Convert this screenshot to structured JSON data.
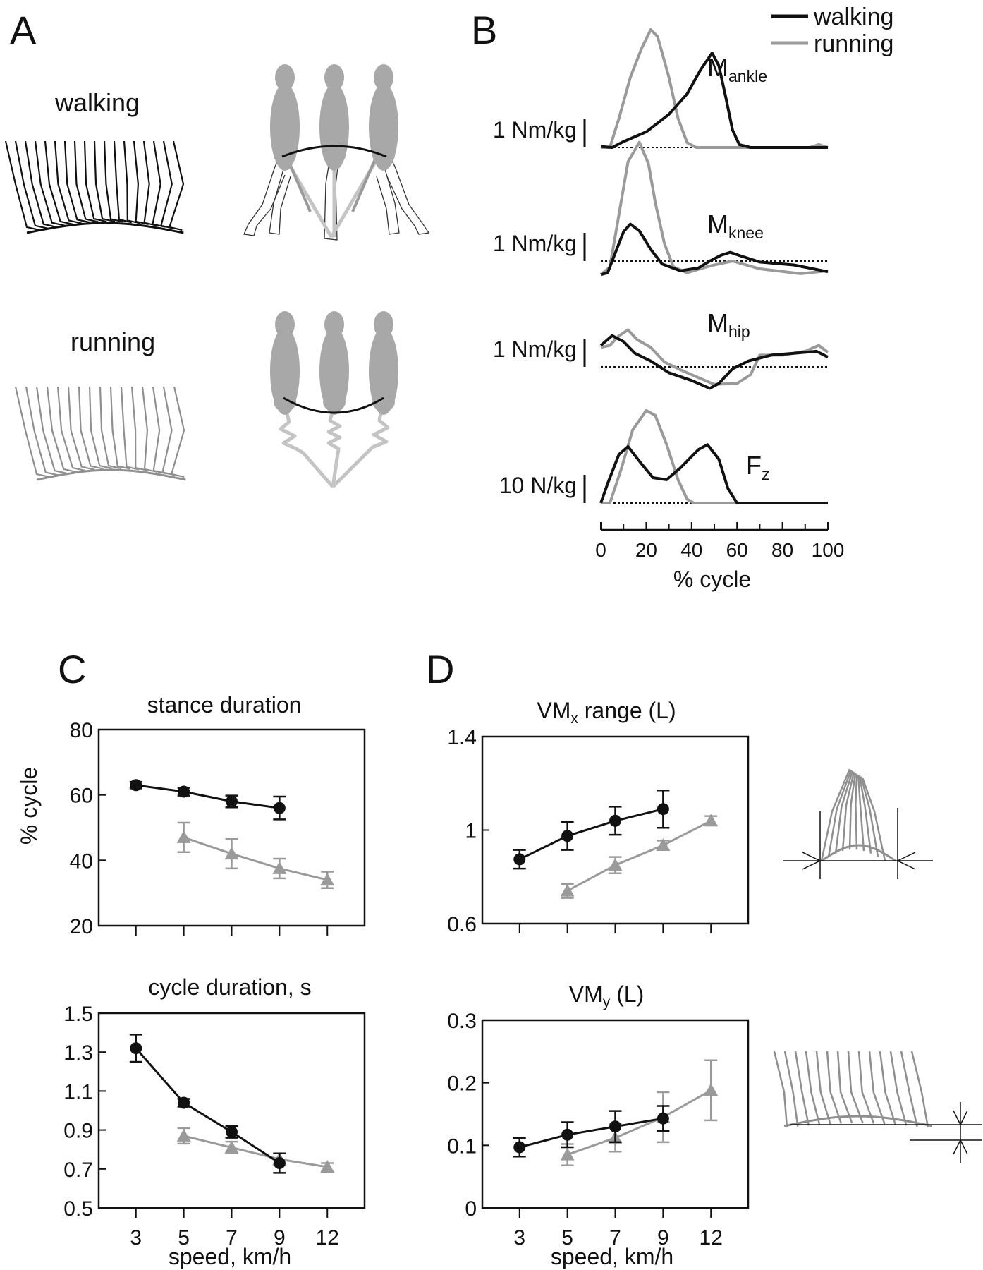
{
  "colors": {
    "walking": "#111111",
    "running": "#9a9a9a",
    "stick_running": "#8f8f8f",
    "body": "#a8a8a8",
    "leg_light": "#c4c4c4"
  },
  "panel_letters": [
    "A",
    "B",
    "C",
    "D"
  ],
  "panelA": {
    "walking_label": "walking",
    "running_label": "running"
  },
  "panelB": {
    "legend": [
      "walking",
      "running"
    ],
    "traces": [
      {
        "label_main": "M",
        "label_sub": "ankle",
        "scale_label": "1 Nm/kg",
        "walking": [
          [
            0,
            0.01
          ],
          [
            5,
            0
          ],
          [
            10,
            0.06
          ],
          [
            20,
            0.16
          ],
          [
            30,
            0.34
          ],
          [
            38,
            0.55
          ],
          [
            44,
            0.8
          ],
          [
            49,
            0.97
          ],
          [
            52,
            0.84
          ],
          [
            55,
            0.52
          ],
          [
            58,
            0.18
          ],
          [
            61,
            0.03
          ],
          [
            66,
            0
          ],
          [
            100,
            0
          ]
        ],
        "running": [
          [
            0,
            0
          ],
          [
            4,
            0
          ],
          [
            8,
            0.3
          ],
          [
            13,
            0.72
          ],
          [
            18,
            1.02
          ],
          [
            22,
            1.21
          ],
          [
            25,
            1.14
          ],
          [
            30,
            0.72
          ],
          [
            34,
            0.3
          ],
          [
            38,
            0.05
          ],
          [
            42,
            0
          ],
          [
            92,
            0
          ],
          [
            96,
            0.03
          ],
          [
            100,
            0
          ]
        ]
      },
      {
        "label_main": "M",
        "label_sub": "knee",
        "scale_label": "1 Nm/kg",
        "walking": [
          [
            0,
            -0.14
          ],
          [
            3,
            -0.12
          ],
          [
            7,
            0.12
          ],
          [
            10,
            0.3
          ],
          [
            13,
            0.38
          ],
          [
            17,
            0.31
          ],
          [
            22,
            0.12
          ],
          [
            27,
            -0.03
          ],
          [
            35,
            -0.1
          ],
          [
            43,
            -0.07
          ],
          [
            48,
            0
          ],
          [
            53,
            0.06
          ],
          [
            57,
            0.09
          ],
          [
            62,
            0.05
          ],
          [
            70,
            -0.01
          ],
          [
            85,
            -0.04
          ],
          [
            100,
            -0.11
          ]
        ],
        "running": [
          [
            0,
            -0.14
          ],
          [
            4,
            -0.06
          ],
          [
            8,
            0.48
          ],
          [
            12,
            1.02
          ],
          [
            17,
            1.22
          ],
          [
            21,
            1.0
          ],
          [
            24,
            0.6
          ],
          [
            28,
            0.18
          ],
          [
            32,
            -0.06
          ],
          [
            38,
            -0.12
          ],
          [
            48,
            -0.05
          ],
          [
            58,
            0
          ],
          [
            70,
            -0.08
          ],
          [
            88,
            -0.13
          ],
          [
            100,
            -0.1
          ]
        ]
      },
      {
        "label_main": "M",
        "label_sub": "hip",
        "scale_label": "1 Nm/kg",
        "walking": [
          [
            0,
            0.22
          ],
          [
            5,
            0.32
          ],
          [
            10,
            0.26
          ],
          [
            15,
            0.14
          ],
          [
            22,
            0.06
          ],
          [
            30,
            -0.06
          ],
          [
            40,
            -0.14
          ],
          [
            48,
            -0.22
          ],
          [
            52,
            -0.17
          ],
          [
            58,
            -0.02
          ],
          [
            65,
            0.06
          ],
          [
            75,
            0.12
          ],
          [
            85,
            0.14
          ],
          [
            95,
            0.16
          ],
          [
            100,
            0.1
          ]
        ],
        "running": [
          [
            0,
            0.2
          ],
          [
            4,
            0.22
          ],
          [
            8,
            0.32
          ],
          [
            12,
            0.38
          ],
          [
            16,
            0.28
          ],
          [
            22,
            0.2
          ],
          [
            28,
            0.05
          ],
          [
            35,
            -0.03
          ],
          [
            42,
            -0.1
          ],
          [
            50,
            -0.18
          ],
          [
            60,
            -0.17
          ],
          [
            66,
            -0.08
          ],
          [
            70,
            0.12
          ],
          [
            80,
            0.12
          ],
          [
            90,
            0.16
          ],
          [
            96,
            0.22
          ],
          [
            100,
            0.15
          ]
        ]
      },
      {
        "label_main": "F",
        "label_sub": "z",
        "scale_label": "10 N/kg",
        "walking": [
          [
            0,
            0
          ],
          [
            3,
            0.2
          ],
          [
            8,
            0.5
          ],
          [
            12,
            0.58
          ],
          [
            18,
            0.4
          ],
          [
            23,
            0.26
          ],
          [
            29,
            0.24
          ],
          [
            35,
            0.36
          ],
          [
            43,
            0.55
          ],
          [
            47,
            0.6
          ],
          [
            52,
            0.45
          ],
          [
            56,
            0.15
          ],
          [
            60,
            0
          ],
          [
            100,
            0
          ]
        ],
        "running": [
          [
            0,
            0
          ],
          [
            4,
            0
          ],
          [
            9,
            0.35
          ],
          [
            14,
            0.75
          ],
          [
            20,
            0.95
          ],
          [
            24,
            0.9
          ],
          [
            29,
            0.6
          ],
          [
            34,
            0.24
          ],
          [
            38,
            0.04
          ],
          [
            41,
            0
          ],
          [
            100,
            0
          ]
        ]
      }
    ],
    "xticks": [
      0,
      20,
      40,
      60,
      80,
      100
    ],
    "xlabel": "% cycle"
  },
  "chart_data": [
    {
      "type": "line",
      "panel": "C",
      "title": "stance duration",
      "ylabel": "% cycle",
      "xlabel": "",
      "categories": [
        "3",
        "5",
        "7",
        "9",
        "12"
      ],
      "ylim": [
        20,
        80
      ],
      "yticks": [
        "80",
        "60",
        "40",
        "20"
      ],
      "series": [
        {
          "name": "walking",
          "values": [
            63,
            61,
            58,
            56,
            null
          ],
          "errors": [
            1,
            1.2,
            1.8,
            3.5,
            null
          ]
        },
        {
          "name": "running",
          "values": [
            null,
            47,
            42,
            37.5,
            34
          ],
          "errors": [
            null,
            4.5,
            4.5,
            3,
            2.5
          ]
        }
      ]
    },
    {
      "type": "line",
      "panel": "C",
      "title": "cycle duration, s",
      "xlabel": "speed, km/h",
      "categories": [
        "3",
        "5",
        "7",
        "9",
        "12"
      ],
      "ylim": [
        0.5,
        1.5
      ],
      "yticks": [
        "1.5",
        "1.3",
        "1.1",
        "0.9",
        "0.7",
        "0.5"
      ],
      "series": [
        {
          "name": "walking",
          "values": [
            1.32,
            1.04,
            0.89,
            0.73,
            null
          ],
          "errors": [
            0.07,
            0.02,
            0.03,
            0.05,
            null
          ]
        },
        {
          "name": "running",
          "values": [
            null,
            0.87,
            0.81,
            0.75,
            0.71
          ],
          "errors": [
            null,
            0.04,
            0.03,
            0.03,
            0.02
          ]
        }
      ]
    },
    {
      "type": "line",
      "panel": "D",
      "title_main": "VM",
      "title_sub": "x",
      "title_rest": " range (L)",
      "xlabel": "",
      "categories": [
        "3",
        "5",
        "7",
        "9",
        "12"
      ],
      "ylim": [
        0.6,
        1.4
      ],
      "yticks": [
        "1.4",
        "1",
        "0.6"
      ],
      "series": [
        {
          "name": "walking",
          "values": [
            0.875,
            0.975,
            1.04,
            1.09,
            null
          ],
          "errors": [
            0.04,
            0.06,
            0.06,
            0.08,
            null
          ]
        },
        {
          "name": "running",
          "values": [
            null,
            0.74,
            0.85,
            0.935,
            1.04
          ],
          "errors": [
            null,
            0.03,
            0.035,
            0.02,
            0.02
          ]
        }
      ]
    },
    {
      "type": "line",
      "panel": "D",
      "title_main": "VM",
      "title_sub": "y",
      "title_rest": " (L)",
      "xlabel": "speed, km/h",
      "categories": [
        "3",
        "5",
        "7",
        "9",
        "12"
      ],
      "ylim": [
        0,
        0.3
      ],
      "yticks": [
        "0.3",
        "0.2",
        "0.1",
        "0"
      ],
      "series": [
        {
          "name": "walking",
          "values": [
            0.097,
            0.117,
            0.13,
            0.143,
            null
          ],
          "errors": [
            0.015,
            0.02,
            0.025,
            0.02,
            null
          ]
        },
        {
          "name": "running",
          "values": [
            null,
            0.085,
            0.112,
            0.145,
            0.188
          ],
          "errors": [
            null,
            0.017,
            0.022,
            0.04,
            0.048
          ]
        }
      ]
    }
  ]
}
